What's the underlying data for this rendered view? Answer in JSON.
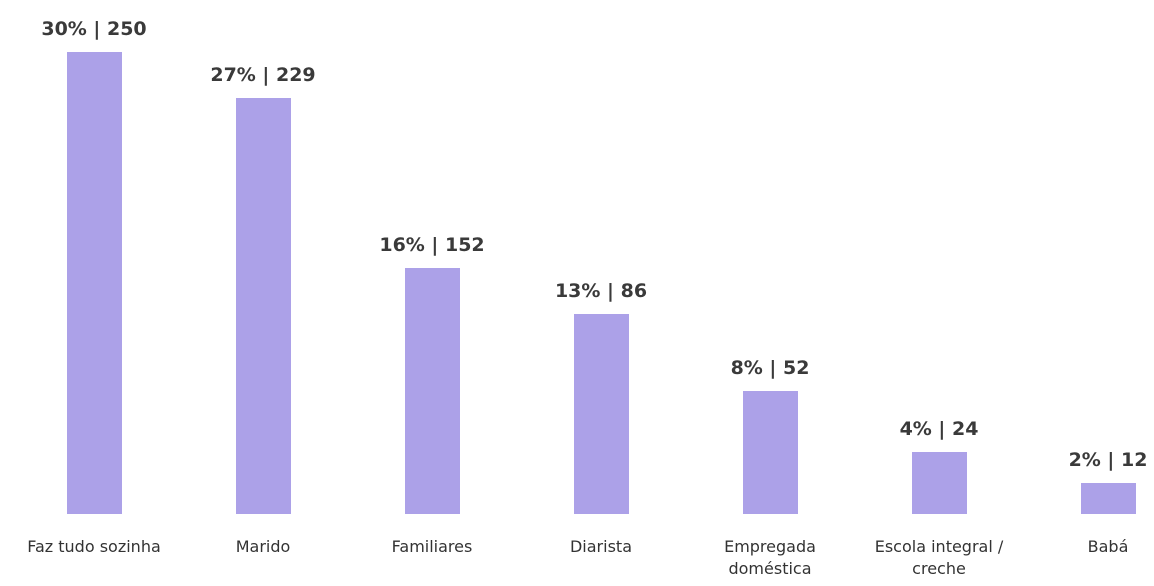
{
  "chart_data": {
    "type": "bar",
    "categories": [
      "Faz tudo sozinha",
      "Marido",
      "Familiares",
      "Diarista",
      "Empregada doméstica",
      "Escola integral / creche",
      "Babá"
    ],
    "values": [
      30,
      27,
      16,
      13,
      8,
      4,
      2
    ],
    "value_labels": [
      "30% | 250",
      "27% | 229",
      "16% | 152",
      "13% | 86",
      "8% | 52",
      "4% | 24",
      "2% | 12"
    ],
    "color": "#aca1e8"
  }
}
